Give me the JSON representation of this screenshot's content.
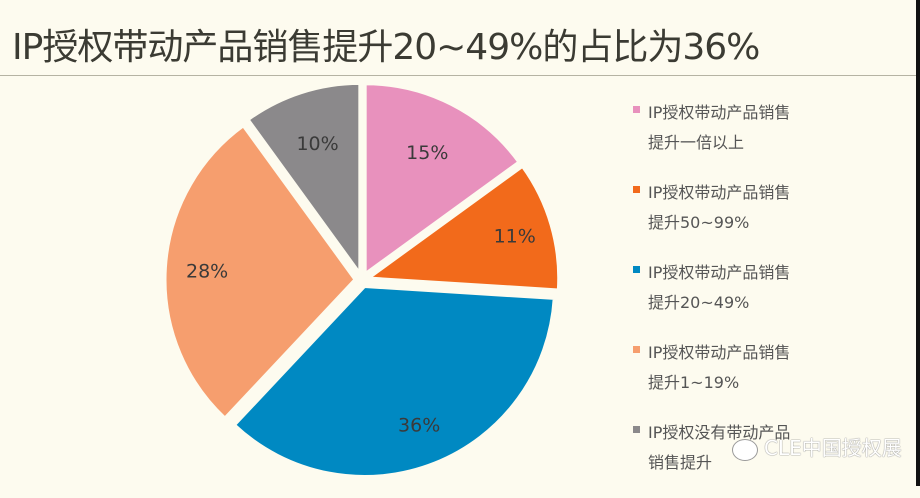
{
  "title": "IP授权带动产品销售提升20~49%的占比为36%",
  "chart_data": {
    "type": "pie",
    "title": "IP授权带动产品销售提升20~49%的占比为36%",
    "start_angle": "12 o'clock, clockwise",
    "exploded": true,
    "categories": [
      "IP授权带动产品销售提升一倍以上",
      "IP授权带动产品销售提升50~99%",
      "IP授权带动产品销售提升20~49%",
      "IP授权带动产品销售提升1~19%",
      "IP授权没有带动产品销售提升"
    ],
    "values": [
      15,
      11,
      36,
      28,
      10
    ],
    "labels": [
      "15%",
      "11%",
      "36%",
      "28%",
      "10%"
    ],
    "colors": [
      "#e891bd",
      "#f26a1b",
      "#0089c2",
      "#f69e6e",
      "#8b898b"
    ],
    "legend_position": "right"
  },
  "legend": [
    {
      "line1": "IP授权带动产品销售",
      "line2": "提升一倍以上",
      "color": "#e891bd"
    },
    {
      "line1": "IP授权带动产品销售",
      "line2": "提升50~99%",
      "color": "#f26a1b"
    },
    {
      "line1": "IP授权带动产品销售",
      "line2": "提升20~49%",
      "color": "#0089c2"
    },
    {
      "line1": "IP授权带动产品销售",
      "line2": "提升1~19%",
      "color": "#f69e6e"
    },
    {
      "line1": "IP授权没有带动产品",
      "line2": "销售提升",
      "color": "#8b898b"
    }
  ],
  "watermark": "CLE中国授权展"
}
